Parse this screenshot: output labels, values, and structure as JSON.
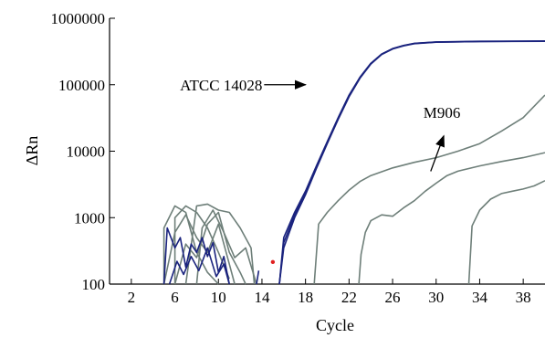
{
  "chart_data": {
    "type": "line",
    "xlabel": "Cycle",
    "ylabel": "ΔRn",
    "xlim": [
      0,
      40
    ],
    "ylim": [
      100,
      1000000
    ],
    "yscale": "log",
    "xticks": [
      2,
      6,
      10,
      14,
      18,
      22,
      26,
      30,
      34,
      38
    ],
    "yticks": [
      100,
      1000,
      10000,
      100000,
      1000000
    ],
    "ytick_labels": [
      "100",
      "1000",
      "10000",
      "100000",
      "1000000"
    ],
    "grid": false,
    "annotations": [
      {
        "text": "ATCC 14028",
        "arrow_from": [
          14.2,
          100000
        ],
        "arrow_to": [
          18.0,
          100000
        ]
      },
      {
        "text": "M906",
        "arrow_from": [
          29.5,
          10000
        ],
        "arrow_to": [
          30.7,
          17000
        ],
        "second_arrow_to": [
          30.7,
          5000
        ]
      }
    ],
    "marker": {
      "x": 15.0,
      "y": 215,
      "color": "#e02020"
    },
    "series": [
      {
        "color": "#1a237e",
        "points": [
          [
            15.6,
            100
          ],
          [
            16.0,
            500
          ],
          [
            17.0,
            1200
          ],
          [
            18.0,
            2500
          ],
          [
            19.0,
            6000
          ],
          [
            20.0,
            14000
          ],
          [
            21.0,
            32000
          ],
          [
            22.0,
            70000
          ],
          [
            23.0,
            130000
          ],
          [
            24.0,
            210000
          ],
          [
            25.0,
            290000
          ],
          [
            26.0,
            350000
          ],
          [
            27.0,
            390000
          ],
          [
            28.0,
            420000
          ],
          [
            30.0,
            440000
          ],
          [
            34.0,
            450000
          ],
          [
            40.0,
            455000
          ]
        ]
      },
      {
        "color": "#1a237e",
        "points": [
          [
            15.6,
            100
          ],
          [
            16.0,
            420
          ],
          [
            17.0,
            1100
          ],
          [
            18.0,
            2400
          ],
          [
            19.0,
            5800
          ],
          [
            20.0,
            13500
          ],
          [
            21.0,
            31000
          ],
          [
            22.0,
            68000
          ],
          [
            23.0,
            128000
          ],
          [
            24.0,
            208000
          ],
          [
            25.0,
            288000
          ],
          [
            26.0,
            348000
          ],
          [
            27.0,
            388000
          ],
          [
            28.0,
            418000
          ],
          [
            30.0,
            438000
          ],
          [
            34.0,
            448000
          ],
          [
            40.0,
            453000
          ]
        ]
      },
      {
        "color": "#1a237e",
        "points": [
          [
            15.6,
            100
          ],
          [
            16.0,
            350
          ],
          [
            17.0,
            1000
          ],
          [
            18.0,
            2200
          ],
          [
            19.0,
            5500
          ],
          [
            20.0,
            13000
          ],
          [
            21.0,
            30000
          ],
          [
            22.0,
            66000
          ],
          [
            23.0,
            125000
          ],
          [
            24.0,
            205000
          ],
          [
            25.0,
            285000
          ],
          [
            26.0,
            345000
          ],
          [
            27.0,
            385000
          ],
          [
            28.0,
            415000
          ],
          [
            30.0,
            436000
          ],
          [
            34.0,
            446000
          ],
          [
            40.0,
            451000
          ]
        ]
      },
      {
        "color": "#6e7f79",
        "points": [
          [
            18.8,
            100
          ],
          [
            19.2,
            800
          ],
          [
            20.0,
            1200
          ],
          [
            21.0,
            1800
          ],
          [
            22.0,
            2600
          ],
          [
            23.0,
            3500
          ],
          [
            24.0,
            4300
          ],
          [
            26.0,
            5600
          ],
          [
            28.0,
            6800
          ],
          [
            30.0,
            8000
          ],
          [
            32.0,
            10000
          ],
          [
            34.0,
            13000
          ],
          [
            36.0,
            20000
          ],
          [
            38.0,
            32000
          ],
          [
            40.0,
            70000
          ]
        ]
      },
      {
        "color": "#6e7f79",
        "points": [
          [
            22.9,
            100
          ],
          [
            23.1,
            280
          ],
          [
            23.5,
            600
          ],
          [
            24.0,
            900
          ],
          [
            25.0,
            1100
          ],
          [
            26.0,
            1050
          ],
          [
            27.0,
            1400
          ],
          [
            28.0,
            1800
          ],
          [
            29.0,
            2500
          ],
          [
            30.0,
            3300
          ],
          [
            31.0,
            4300
          ],
          [
            32.0,
            5000
          ],
          [
            34.0,
            6000
          ],
          [
            36.0,
            7000
          ],
          [
            38.0,
            8000
          ],
          [
            40.0,
            9500
          ]
        ]
      },
      {
        "color": "#6e7f79",
        "points": [
          [
            33.0,
            100
          ],
          [
            33.3,
            750
          ],
          [
            34.0,
            1300
          ],
          [
            35.0,
            1900
          ],
          [
            36.0,
            2300
          ],
          [
            37.0,
            2500
          ],
          [
            38.0,
            2700
          ],
          [
            39.0,
            3000
          ],
          [
            40.0,
            3600
          ]
        ]
      },
      {
        "color": "#6e7f79",
        "points": [
          [
            5.0,
            100
          ],
          [
            5.0,
            700
          ],
          [
            6.0,
            1500
          ],
          [
            7.0,
            1200
          ],
          [
            8.0,
            300
          ],
          [
            9.0,
            150
          ],
          [
            10.0,
            100
          ]
        ]
      },
      {
        "color": "#6e7f79",
        "points": [
          [
            6.0,
            100
          ],
          [
            6.0,
            1000
          ],
          [
            7.0,
            1500
          ],
          [
            8.0,
            1200
          ],
          [
            9.0,
            700
          ],
          [
            10.0,
            300
          ],
          [
            11.0,
            120
          ]
        ]
      },
      {
        "color": "#6e7f79",
        "points": [
          [
            7.0,
            100
          ],
          [
            8.0,
            1500
          ],
          [
            9.0,
            1600
          ],
          [
            10.0,
            1300
          ],
          [
            11.0,
            1200
          ],
          [
            12.0,
            700
          ],
          [
            13.0,
            350
          ],
          [
            13.3,
            100
          ]
        ]
      },
      {
        "color": "#6e7f79",
        "points": [
          [
            5.0,
            100
          ],
          [
            6.0,
            600
          ],
          [
            7.0,
            1100
          ],
          [
            8.0,
            500
          ],
          [
            9.0,
            300
          ],
          [
            10.0,
            800
          ],
          [
            11.0,
            200
          ],
          [
            11.5,
            100
          ]
        ]
      },
      {
        "color": "#6e7f79",
        "points": [
          [
            6.0,
            100
          ],
          [
            7.0,
            400
          ],
          [
            8.0,
            250
          ],
          [
            9.0,
            800
          ],
          [
            10.0,
            1200
          ],
          [
            11.0,
            300
          ],
          [
            12.0,
            150
          ],
          [
            12.5,
            100
          ]
        ]
      },
      {
        "color": "#6e7f79",
        "points": [
          [
            8.0,
            100
          ],
          [
            8.5,
            700
          ],
          [
            9.5,
            1300
          ],
          [
            10.5,
            600
          ],
          [
            11.5,
            250
          ],
          [
            12.5,
            350
          ],
          [
            13.5,
            100
          ]
        ]
      },
      {
        "color": "#1a237e",
        "points": [
          [
            5.0,
            100
          ],
          [
            5.3,
            700
          ],
          [
            6.0,
            350
          ],
          [
            6.5,
            500
          ],
          [
            7.0,
            180
          ],
          [
            7.5,
            400
          ],
          [
            8.0,
            300
          ],
          [
            8.5,
            500
          ],
          [
            9.0,
            260
          ],
          [
            9.5,
            420
          ],
          [
            10.0,
            150
          ],
          [
            10.5,
            260
          ],
          [
            11.0,
            100
          ]
        ]
      },
      {
        "color": "#1a237e",
        "points": [
          [
            5.5,
            100
          ],
          [
            6.2,
            220
          ],
          [
            6.8,
            140
          ],
          [
            7.5,
            260
          ],
          [
            8.2,
            160
          ],
          [
            9.0,
            350
          ],
          [
            9.8,
            130
          ],
          [
            10.5,
            200
          ],
          [
            11.0,
            100
          ]
        ]
      },
      {
        "color": "#1a237e",
        "points": [
          [
            13.5,
            100
          ],
          [
            13.7,
            160
          ]
        ]
      }
    ]
  }
}
